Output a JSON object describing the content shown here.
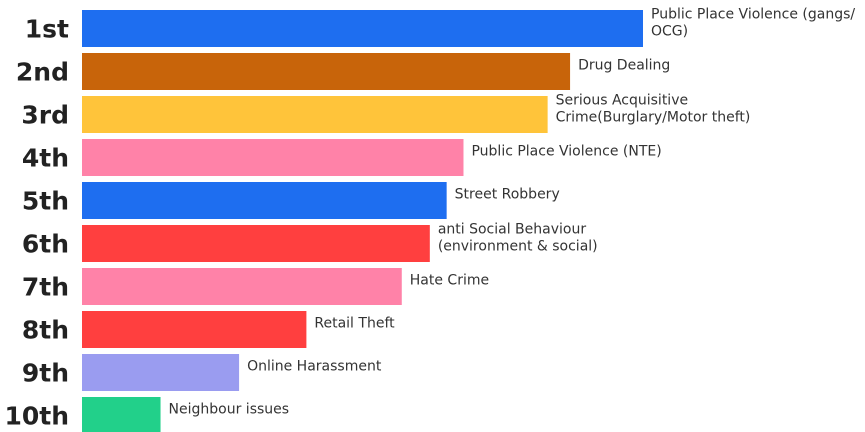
{
  "chart_data": {
    "type": "bar",
    "orientation": "horizontal",
    "categories": [
      "1st",
      "2nd",
      "3rd",
      "4th",
      "5th",
      "6th",
      "7th",
      "8th",
      "9th",
      "10th"
    ],
    "labels": [
      [
        "Public Place Violence (gangs/",
        "OCG)"
      ],
      [
        "Drug Dealing"
      ],
      [
        "Serious Acquisitive",
        "Crime(Burglary/Motor theft)"
      ],
      [
        "Public Place Violence (NTE)"
      ],
      [
        "Street Robbery"
      ],
      [
        "anti Social Behaviour",
        "(environment & social)"
      ],
      [
        "Hate Crime"
      ],
      [
        "Retail Theft"
      ],
      [
        "Online Harassment"
      ],
      [
        "Neighbour issues"
      ]
    ],
    "values": [
      10,
      8.7,
      8.3,
      6.8,
      6.5,
      6.2,
      5.7,
      4.0,
      2.8,
      1.4
    ],
    "colors": [
      "#1e6ef0",
      "#c8640a",
      "#ffc43a",
      "#ff82a8",
      "#1e6ef0",
      "#ff3f3f",
      "#ff82a8",
      "#ff3f3f",
      "#9a9cf0",
      "#22d08a"
    ],
    "xlim": [
      0,
      10
    ],
    "grid": false,
    "legend": "none"
  }
}
